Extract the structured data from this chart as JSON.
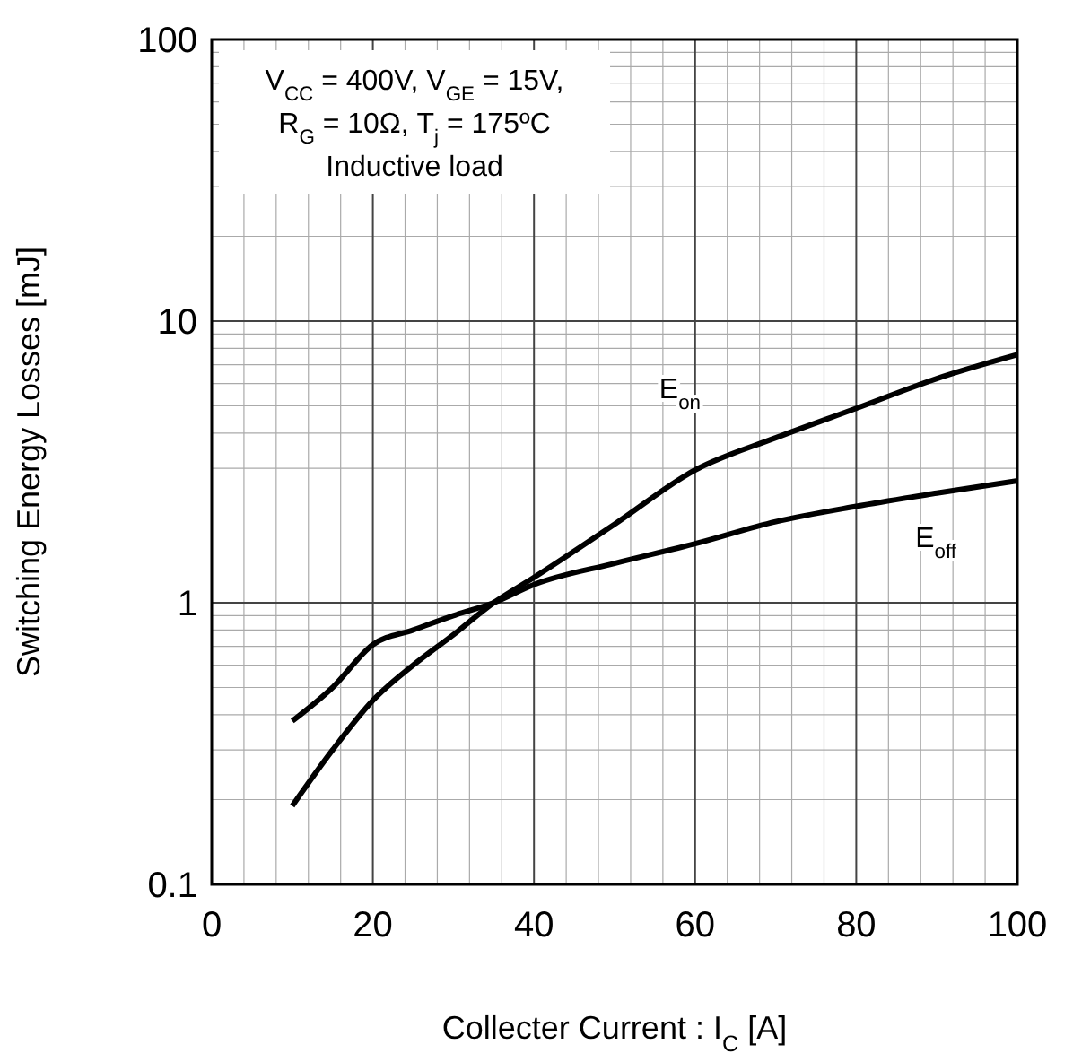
{
  "chart_data": {
    "type": "line",
    "xlabel": "Collecter Current : I$_{C}$ [A]",
    "ylabel": "Switching Energy Losses [mJ]",
    "x": [
      10,
      15,
      20,
      25,
      30,
      35,
      40,
      50,
      60,
      70,
      80,
      90,
      100
    ],
    "series": [
      {
        "name": "E$_{on}$",
        "color": "#000000",
        "values": [
          0.19,
          0.3,
          0.45,
          0.6,
          0.77,
          1.0,
          1.23,
          1.9,
          2.96,
          3.85,
          4.9,
          6.25,
          7.6
        ]
      },
      {
        "name": "E$_{off}$",
        "color": "#000000",
        "values": [
          0.38,
          0.5,
          0.71,
          0.8,
          0.9,
          1.0,
          1.16,
          1.38,
          1.62,
          1.94,
          2.2,
          2.45,
          2.71
        ]
      }
    ],
    "xlim": [
      0,
      100
    ],
    "xticks": [
      0,
      20,
      40,
      60,
      80,
      100
    ],
    "ylim": [
      0.1,
      100
    ],
    "yticks": [
      0.1,
      1,
      10,
      100
    ],
    "log": "y",
    "grid": true,
    "marker": "none",
    "line_style": "solid",
    "annotations": [
      "V$_{CC}$ = 400V, V$_{GE}$ = 15V,",
      "R$_{G}$ = 10Ω, T$_{j}$ = 175ºC",
      "Inductive load"
    ]
  }
}
